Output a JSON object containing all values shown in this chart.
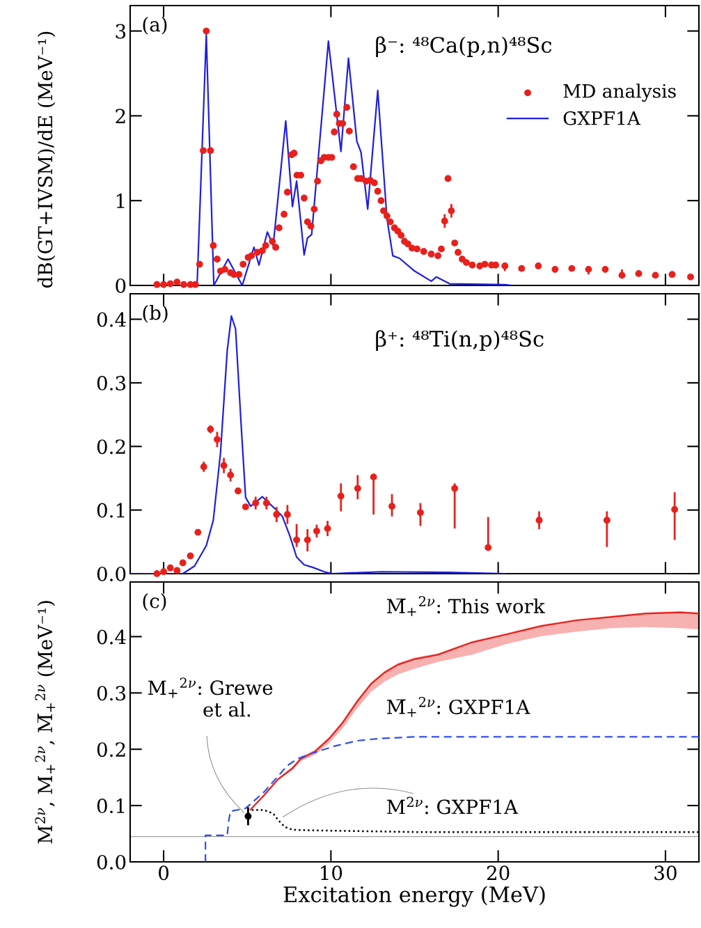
{
  "chart_data": [
    {
      "type": "scatter",
      "annotations": [
        "(a)",
        "β⁻: ⁴⁸Ca(p,n)⁴⁸Sc"
      ],
      "ylabel": "dB(GT+IVSM)/dE (MeV⁻¹)",
      "xlim": [
        -2,
        32
      ],
      "xticks": [
        0,
        10,
        20,
        30
      ],
      "ylim": [
        0,
        3.3
      ],
      "yticks": [
        0,
        1,
        2,
        3
      ],
      "tick_labels": "y",
      "legend": "top right",
      "grid": false,
      "series": [
        {
          "name": "MD analysis",
          "color": "#e8201c",
          "marker": "circle",
          "x": [
            -0.4,
            0,
            0.4,
            0.8,
            1.2,
            1.6,
            1.9,
            2.15,
            2.37,
            2.55,
            2.8,
            2.97,
            3.2,
            3.4,
            3.66,
            4.0,
            4.2,
            4.5,
            4.75,
            5.05,
            5.25,
            5.6,
            5.9,
            6.1,
            6.5,
            6.7,
            6.9,
            7.2,
            7.4,
            7.65,
            7.8,
            7.97,
            8.2,
            8.4,
            8.6,
            8.8,
            9.0,
            9.2,
            9.4,
            9.6,
            9.85,
            10.05,
            10.2,
            10.35,
            10.5,
            10.7,
            10.95,
            11.1,
            11.35,
            11.6,
            11.8,
            12.1,
            12.35,
            12.6,
            12.8,
            13.0,
            13.15,
            13.35,
            13.55,
            13.8,
            14.0,
            14.2,
            14.4,
            14.6,
            14.85,
            15.15,
            15.55,
            16.0,
            16.4,
            16.6,
            16.8,
            17.0,
            17.2,
            17.4,
            17.6,
            17.85,
            18.1,
            18.45,
            18.9,
            19.2,
            19.6,
            19.85,
            20.4,
            21.4,
            22.4,
            23.4,
            24.4,
            25.4,
            26.4,
            27.4,
            28.4,
            29.4,
            30.4,
            31.5
          ],
          "values": [
            0.01,
            0.01,
            0.02,
            0.04,
            0.01,
            0.01,
            0.01,
            0.25,
            1.59,
            3.0,
            1.59,
            0.47,
            0.31,
            0.17,
            0.19,
            0.15,
            0.13,
            0.13,
            0.25,
            0.33,
            0.35,
            0.39,
            0.41,
            0.47,
            0.52,
            0.45,
            0.68,
            0.84,
            1.1,
            1.54,
            1.56,
            1.3,
            1.3,
            1.03,
            0.75,
            0.7,
            0.9,
            1.23,
            1.47,
            1.51,
            1.51,
            1.51,
            1.81,
            2.02,
            1.91,
            1.91,
            2.1,
            1.82,
            1.4,
            1.26,
            1.26,
            1.23,
            1.24,
            1.21,
            1.11,
            1.0,
            0.88,
            0.82,
            0.75,
            0.68,
            0.64,
            0.59,
            0.52,
            0.49,
            0.44,
            0.43,
            0.4,
            0.37,
            0.35,
            0.43,
            0.76,
            1.26,
            0.88,
            0.5,
            0.39,
            0.31,
            0.27,
            0.24,
            0.23,
            0.25,
            0.24,
            0.24,
            0.23,
            0.2,
            0.23,
            0.19,
            0.2,
            0.19,
            0.19,
            0.12,
            0.14,
            0.12,
            0.13,
            0.1
          ],
          "errors": [
            null,
            null,
            null,
            null,
            null,
            null,
            null,
            null,
            null,
            null,
            null,
            null,
            null,
            null,
            null,
            null,
            null,
            null,
            null,
            null,
            null,
            null,
            null,
            null,
            null,
            null,
            null,
            null,
            null,
            null,
            null,
            null,
            null,
            null,
            null,
            null,
            null,
            null,
            null,
            null,
            null,
            null,
            null,
            null,
            null,
            null,
            null,
            null,
            null,
            null,
            null,
            null,
            null,
            null,
            null,
            null,
            null,
            null,
            null,
            null,
            null,
            null,
            null,
            null,
            null,
            null,
            null,
            null,
            null,
            null,
            [
              0.68,
              0.84
            ],
            null,
            [
              0.8,
              0.96
            ],
            null,
            null,
            null,
            null,
            null,
            null,
            null,
            null,
            null,
            [
              0.17,
              0.27
            ],
            null,
            [
              0.2,
              0.27
            ],
            [
              0.15,
              0.22
            ],
            [
              0.17,
              0.23
            ],
            [
              0.13,
              0.22
            ],
            [
              0.15,
              0.22
            ],
            [
              0.08,
              0.19
            ],
            null,
            null,
            null,
            [
              0.07,
              0.12
            ]
          ]
        },
        {
          "name": "GXPF1A",
          "type": "line",
          "color": "#1f1fe0",
          "line_style": "solid",
          "x": [
            2.0,
            2.55,
            3.0,
            3.85,
            4.7,
            5.4,
            5.7,
            6.2,
            6.55,
            7.3,
            7.7,
            7.95,
            8.4,
            8.6,
            8.85,
            9.85,
            10.6,
            11.05,
            11.55,
            11.8,
            12.2,
            12.8,
            13.35,
            13.7,
            14.1,
            15.0,
            16.0,
            16.3,
            17.1,
            20.4,
            20.8
          ],
          "values": [
            0,
            2.96,
            0,
            0.31,
            0,
            0.45,
            0.24,
            0.63,
            0.47,
            1.94,
            0.93,
            1.23,
            0.36,
            0.56,
            0.6,
            2.88,
            1.58,
            2.68,
            1.7,
            1.57,
            0.9,
            2.3,
            0.79,
            0.35,
            0.32,
            0.17,
            0.05,
            0.1,
            0.02,
            0.01,
            0
          ]
        }
      ]
    },
    {
      "type": "scatter",
      "annotations": [
        "(b)",
        "β⁺: ⁴⁸Ti(n,p)⁴⁸Sc"
      ],
      "xlim": [
        -2,
        32
      ],
      "xticks": [
        0,
        10,
        20,
        30
      ],
      "ylim": [
        0,
        0.44
      ],
      "yticks": [
        {
          "value": 0,
          "label": "0.0"
        },
        0.1,
        0.2,
        0.3,
        0.4
      ],
      "tick_labels": "y",
      "grid": false,
      "series": [
        {
          "color": "#e8201c",
          "marker": "circle",
          "x": [
            -0.4,
            0,
            0.4,
            0.8,
            1.15,
            1.6,
            2.05,
            2.4,
            2.8,
            3.2,
            3.6,
            4.0,
            4.45,
            4.9,
            5.5,
            6.15,
            6.75,
            7.4,
            7.95,
            8.6,
            9.15,
            9.8,
            10.6,
            11.6,
            12.55,
            13.65,
            15.35,
            17.4,
            19.4,
            22.45,
            26.5,
            30.55
          ],
          "values": [
            0.0,
            0.003,
            0.009,
            0.005,
            0.017,
            0.028,
            0.065,
            0.168,
            0.227,
            0.211,
            0.17,
            0.155,
            0.13,
            0.105,
            0.111,
            0.111,
            0.093,
            0.093,
            0.053,
            0.053,
            0.067,
            0.071,
            0.122,
            0.134,
            0.152,
            0.106,
            0.096,
            0.134,
            0.041,
            0.084,
            0.084,
            0.101
          ],
          "errors": [
            null,
            null,
            null,
            null,
            null,
            null,
            null,
            0.008,
            0.006,
            0.012,
            0.012,
            0.01,
            null,
            null,
            0.01,
            0.01,
            0.012,
            0.015,
            [
              0.042,
              0.078
            ],
            [
              0.035,
              0.07
            ],
            0.01,
            0.012,
            [
              0.098,
              0.142
            ],
            [
              0.117,
              0.155
            ],
            [
              0.093,
              0.152
            ],
            [
              0.09,
              0.125
            ],
            [
              0.075,
              0.111
            ],
            [
              0.071,
              0.142
            ],
            [
              0.037,
              0.089
            ],
            [
              0.07,
              0.098
            ],
            [
              0.042,
              0.098
            ],
            [
              0.053,
              0.128
            ]
          ]
        },
        {
          "type": "line",
          "color": "#1f1fe0",
          "line_style": "solid",
          "x": [
            -2,
            1.15,
            1.85,
            2.55,
            2.97,
            3.4,
            3.8,
            4.05,
            4.3,
            4.65,
            4.9,
            5.2,
            5.5,
            5.9,
            6.3,
            6.7,
            7.1,
            7.55,
            7.95,
            8.4,
            8.9,
            9.6,
            10.05,
            13,
            17,
            20.4
          ],
          "values": [
            0,
            0,
            0.012,
            0.044,
            0.084,
            0.19,
            0.35,
            0.405,
            0.385,
            0.227,
            0.12,
            0.106,
            0.112,
            0.121,
            0.111,
            0.101,
            0.09,
            0.059,
            0.026,
            0.014,
            0.01,
            0.003,
            0,
            0.003,
            0.002,
            0
          ]
        }
      ]
    },
    {
      "type": "line",
      "annotations": [
        "(c)"
      ],
      "xlabel": "Excitation energy (MeV)",
      "ylabel": "M$^{2ν}$, M$_{+}$$^{2ν}$, M̅$_{+}$$^{2ν}$ (MeV⁻¹)",
      "xlim": [
        -2,
        32
      ],
      "xticks": [
        0,
        10,
        20,
        30
      ],
      "ylim": [
        0,
        0.497
      ],
      "yticks": [
        {
          "value": 0,
          "label": "0.0"
        },
        0.1,
        0.2,
        0.3,
        0.4
      ],
      "grid": false,
      "ref_lines": [
        {
          "axis": "y",
          "value": 0.045,
          "color": "#a0a0a0"
        }
      ],
      "series": [
        {
          "name": "M̅$_{+}$$^{2ν}$: This work",
          "color": "#e8201c",
          "line_style": "solid",
          "x": [
            5.2,
            6.0,
            6.85,
            7.7,
            8.2,
            9.05,
            9.9,
            10.7,
            11.55,
            12.4,
            13.2,
            14.0,
            15.0,
            16.4,
            18.45,
            20.5,
            22.6,
            24.7,
            26.8,
            28.8,
            30.9,
            32
          ],
          "values": [
            0.093,
            0.118,
            0.147,
            0.166,
            0.183,
            0.196,
            0.219,
            0.247,
            0.284,
            0.316,
            0.336,
            0.35,
            0.36,
            0.368,
            0.39,
            0.404,
            0.419,
            0.429,
            0.435,
            0.441,
            0.443,
            0.441
          ],
          "lower": [
            0.092,
            0.116,
            0.145,
            0.163,
            0.179,
            0.19,
            0.211,
            0.237,
            0.272,
            0.302,
            0.32,
            0.333,
            0.343,
            0.355,
            0.368,
            0.387,
            0.401,
            0.409,
            0.415,
            0.417,
            0.415,
            0.413
          ],
          "upper": [
            0.094,
            0.12,
            0.149,
            0.169,
            0.186,
            0.199,
            0.222,
            0.25,
            0.287,
            0.319,
            0.339,
            0.353,
            0.363,
            0.37,
            0.392,
            0.406,
            0.421,
            0.431,
            0.437,
            0.443,
            0.445,
            0.443
          ]
        },
        {
          "name": "M̅$_{+}$$^{2ν}$: GXPF1A",
          "color": "#3050ee",
          "line_style": "dashed",
          "x": [
            2.5,
            2.5,
            3.8,
            3.9,
            4.0,
            4.9,
            6.0,
            7.4,
            8.0,
            8.8,
            10.15,
            11.55,
            12.9,
            15.0,
            32
          ],
          "values": [
            0,
            0.047,
            0.047,
            0.075,
            0.09,
            0.095,
            0.124,
            0.171,
            0.183,
            0.192,
            0.205,
            0.215,
            0.219,
            0.222,
            0.222
          ]
        },
        {
          "name": "M$^{2ν}$: GXPF1A",
          "color": "#000000",
          "line_style": "dotted",
          "x": [
            5.0,
            6.0,
            6.55,
            6.85,
            7.25,
            7.7,
            8.8,
            15.0,
            32
          ],
          "values": [
            0.092,
            0.092,
            0.086,
            0.074,
            0.062,
            0.057,
            0.056,
            0.053,
            0.053
          ]
        },
        {
          "name": "M$_{+}$$^{2ν}$: Grewe\n         et al.",
          "type": "scatter",
          "color": "#000000",
          "marker": "circle",
          "x": [
            5.05
          ],
          "values": [
            0.081
          ],
          "errors": [
            0.016
          ]
        }
      ]
    }
  ]
}
